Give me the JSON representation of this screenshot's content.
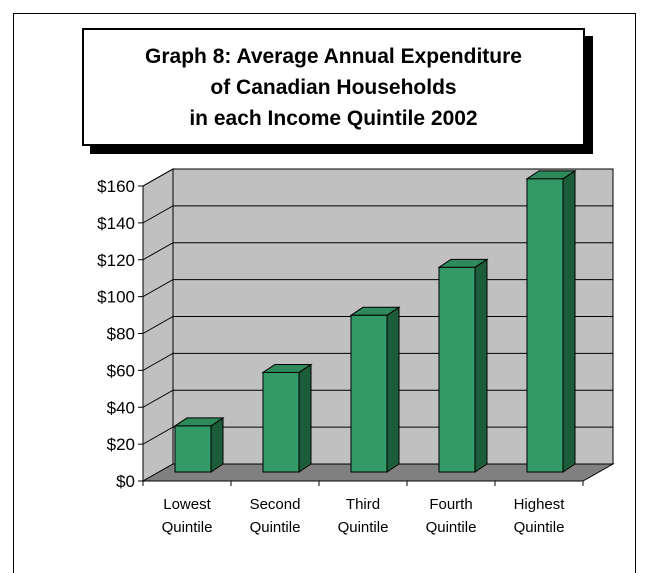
{
  "chart_data": {
    "type": "bar",
    "title": "Graph 8: Average Annual Expenditure\nof Canadian Households\nin each Income Quintile  2002",
    "categories": [
      "Lowest\nQuintile",
      "Second\nQuintile",
      "Third\nQuintile",
      "Fourth\nQuintile",
      "Highest\nQuintile"
    ],
    "values": [
      25,
      54,
      85,
      111,
      159
    ],
    "ylim": [
      0,
      160
    ],
    "yticks": [
      "$0",
      "$20",
      "$40",
      "$60",
      "$80",
      "$100",
      "$120",
      "$140",
      "$160"
    ],
    "xlabel": "",
    "ylabel": "",
    "grid": true,
    "legend": "none",
    "style": "3d-column"
  },
  "colors": {
    "bar_front": "#339966",
    "bar_side": "#1c5c3a",
    "bar_top": "#2e8a5a",
    "wall": "#c0c0c0",
    "floor": "#808080"
  }
}
